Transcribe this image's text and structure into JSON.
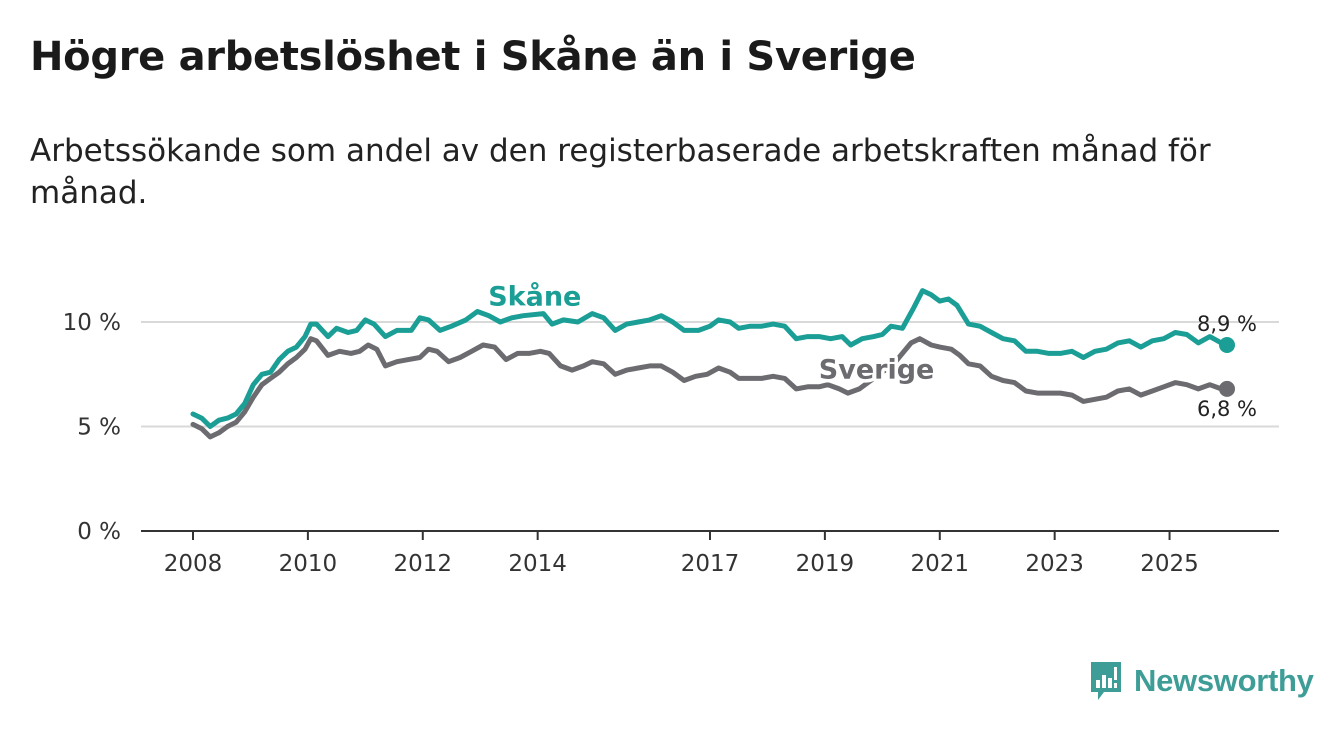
{
  "title": "Högre arbetslöshet i Skåne än i Sverige",
  "subtitle": "Arbetssökande som andel av den registerbaserade arbetskraften månad för månad.",
  "brand": {
    "name": "Newsworthy",
    "icon": "newsworthy-logo-icon",
    "color": "#3e9e97"
  },
  "colors": {
    "skane": "#1a9e95",
    "sverige": "#6b6b70",
    "grid": "#d9d9d9",
    "axis": "#333333"
  },
  "chart_data": {
    "type": "line",
    "title": "Högre arbetslöshet i Skåne än i Sverige",
    "xlabel": "",
    "ylabel": "",
    "xlim": [
      2008,
      2026.9
    ],
    "ylim": [
      0,
      10
    ],
    "xticks": [
      {
        "value": 2008,
        "label": "2008"
      },
      {
        "value": 2010,
        "label": "2010"
      },
      {
        "value": 2012,
        "label": "2012"
      },
      {
        "value": 2014,
        "label": "2014"
      },
      {
        "value": 2017,
        "label": "2017"
      },
      {
        "value": 2019,
        "label": "2019"
      },
      {
        "value": 2021,
        "label": "2021"
      },
      {
        "value": 2023,
        "label": "2023"
      },
      {
        "value": 2025,
        "label": "2025"
      }
    ],
    "yticks": [
      {
        "value": 0,
        "label": "0 %"
      },
      {
        "value": 5,
        "label": "5 %"
      },
      {
        "value": 10,
        "label": "10 %"
      }
    ],
    "series": [
      {
        "name": "Skåne",
        "end_label": "8,9 %",
        "points": [
          [
            2008.0,
            5.6
          ],
          [
            2008.15,
            5.4
          ],
          [
            2008.3,
            5.0
          ],
          [
            2008.45,
            5.3
          ],
          [
            2008.6,
            5.4
          ],
          [
            2008.75,
            5.6
          ],
          [
            2008.9,
            6.1
          ],
          [
            2009.05,
            7.0
          ],
          [
            2009.2,
            7.5
          ],
          [
            2009.35,
            7.6
          ],
          [
            2009.5,
            8.2
          ],
          [
            2009.65,
            8.6
          ],
          [
            2009.8,
            8.8
          ],
          [
            2009.95,
            9.3
          ],
          [
            2010.05,
            9.9
          ],
          [
            2010.15,
            9.9
          ],
          [
            2010.35,
            9.3
          ],
          [
            2010.5,
            9.7
          ],
          [
            2010.7,
            9.5
          ],
          [
            2010.85,
            9.6
          ],
          [
            2011.0,
            10.1
          ],
          [
            2011.15,
            9.9
          ],
          [
            2011.35,
            9.3
          ],
          [
            2011.55,
            9.6
          ],
          [
            2011.8,
            9.6
          ],
          [
            2011.95,
            10.2
          ],
          [
            2012.1,
            10.1
          ],
          [
            2012.3,
            9.6
          ],
          [
            2012.5,
            9.8
          ],
          [
            2012.75,
            10.1
          ],
          [
            2012.95,
            10.5
          ],
          [
            2013.15,
            10.3
          ],
          [
            2013.35,
            10.0
          ],
          [
            2013.55,
            10.2
          ],
          [
            2013.75,
            10.3
          ],
          [
            2014.1,
            10.4
          ],
          [
            2014.25,
            9.9
          ],
          [
            2014.45,
            10.1
          ],
          [
            2014.7,
            10.0
          ],
          [
            2014.95,
            10.4
          ],
          [
            2015.15,
            10.2
          ],
          [
            2015.35,
            9.6
          ],
          [
            2015.55,
            9.9
          ],
          [
            2015.75,
            10.0
          ],
          [
            2015.95,
            10.1
          ],
          [
            2016.15,
            10.3
          ],
          [
            2016.35,
            10.0
          ],
          [
            2016.55,
            9.6
          ],
          [
            2016.8,
            9.6
          ],
          [
            2017.0,
            9.8
          ],
          [
            2017.15,
            10.1
          ],
          [
            2017.35,
            10.0
          ],
          [
            2017.5,
            9.7
          ],
          [
            2017.7,
            9.8
          ],
          [
            2017.9,
            9.8
          ],
          [
            2018.1,
            9.9
          ],
          [
            2018.3,
            9.8
          ],
          [
            2018.5,
            9.2
          ],
          [
            2018.7,
            9.3
          ],
          [
            2018.9,
            9.3
          ],
          [
            2019.1,
            9.2
          ],
          [
            2019.3,
            9.3
          ],
          [
            2019.45,
            8.9
          ],
          [
            2019.65,
            9.2
          ],
          [
            2019.85,
            9.3
          ],
          [
            2020.0,
            9.4
          ],
          [
            2020.15,
            9.8
          ],
          [
            2020.35,
            9.7
          ],
          [
            2020.55,
            10.7
          ],
          [
            2020.7,
            11.5
          ],
          [
            2020.85,
            11.3
          ],
          [
            2021.0,
            11.0
          ],
          [
            2021.15,
            11.1
          ],
          [
            2021.3,
            10.8
          ],
          [
            2021.5,
            9.9
          ],
          [
            2021.7,
            9.8
          ],
          [
            2021.9,
            9.5
          ],
          [
            2022.1,
            9.2
          ],
          [
            2022.3,
            9.1
          ],
          [
            2022.5,
            8.6
          ],
          [
            2022.7,
            8.6
          ],
          [
            2022.9,
            8.5
          ],
          [
            2023.1,
            8.5
          ],
          [
            2023.3,
            8.6
          ],
          [
            2023.5,
            8.3
          ],
          [
            2023.7,
            8.6
          ],
          [
            2023.9,
            8.7
          ],
          [
            2024.1,
            9.0
          ],
          [
            2024.3,
            9.1
          ],
          [
            2024.5,
            8.8
          ],
          [
            2024.7,
            9.1
          ],
          [
            2024.9,
            9.2
          ],
          [
            2025.1,
            9.5
          ],
          [
            2025.3,
            9.4
          ],
          [
            2025.5,
            9.0
          ],
          [
            2025.7,
            9.3
          ],
          [
            2025.9,
            9.0
          ],
          [
            2026.0,
            8.9
          ]
        ]
      },
      {
        "name": "Sverige",
        "end_label": "6,8 %",
        "points": [
          [
            2008.0,
            5.1
          ],
          [
            2008.15,
            4.9
          ],
          [
            2008.3,
            4.5
          ],
          [
            2008.45,
            4.7
          ],
          [
            2008.6,
            5.0
          ],
          [
            2008.75,
            5.2
          ],
          [
            2008.9,
            5.7
          ],
          [
            2009.05,
            6.4
          ],
          [
            2009.2,
            7.0
          ],
          [
            2009.35,
            7.3
          ],
          [
            2009.5,
            7.6
          ],
          [
            2009.65,
            8.0
          ],
          [
            2009.8,
            8.3
          ],
          [
            2009.95,
            8.7
          ],
          [
            2010.05,
            9.2
          ],
          [
            2010.15,
            9.1
          ],
          [
            2010.35,
            8.4
          ],
          [
            2010.55,
            8.6
          ],
          [
            2010.75,
            8.5
          ],
          [
            2010.9,
            8.6
          ],
          [
            2011.05,
            8.9
          ],
          [
            2011.2,
            8.7
          ],
          [
            2011.35,
            7.9
          ],
          [
            2011.55,
            8.1
          ],
          [
            2011.75,
            8.2
          ],
          [
            2011.95,
            8.3
          ],
          [
            2012.1,
            8.7
          ],
          [
            2012.25,
            8.6
          ],
          [
            2012.45,
            8.1
          ],
          [
            2012.65,
            8.3
          ],
          [
            2012.85,
            8.6
          ],
          [
            2013.05,
            8.9
          ],
          [
            2013.25,
            8.8
          ],
          [
            2013.45,
            8.2
          ],
          [
            2013.65,
            8.5
          ],
          [
            2013.85,
            8.5
          ],
          [
            2014.05,
            8.6
          ],
          [
            2014.2,
            8.5
          ],
          [
            2014.4,
            7.9
          ],
          [
            2014.6,
            7.7
          ],
          [
            2014.8,
            7.9
          ],
          [
            2014.95,
            8.1
          ],
          [
            2015.15,
            8.0
          ],
          [
            2015.35,
            7.5
          ],
          [
            2015.55,
            7.7
          ],
          [
            2015.75,
            7.8
          ],
          [
            2015.95,
            7.9
          ],
          [
            2016.15,
            7.9
          ],
          [
            2016.35,
            7.6
          ],
          [
            2016.55,
            7.2
          ],
          [
            2016.75,
            7.4
          ],
          [
            2016.95,
            7.5
          ],
          [
            2017.15,
            7.8
          ],
          [
            2017.35,
            7.6
          ],
          [
            2017.5,
            7.3
          ],
          [
            2017.7,
            7.3
          ],
          [
            2017.9,
            7.3
          ],
          [
            2018.1,
            7.4
          ],
          [
            2018.3,
            7.3
          ],
          [
            2018.5,
            6.8
          ],
          [
            2018.7,
            6.9
          ],
          [
            2018.9,
            6.9
          ],
          [
            2019.05,
            7.0
          ],
          [
            2019.25,
            6.8
          ],
          [
            2019.4,
            6.6
          ],
          [
            2019.6,
            6.8
          ],
          [
            2019.8,
            7.2
          ],
          [
            2020.0,
            7.6
          ],
          [
            2020.2,
            8.0
          ],
          [
            2020.35,
            8.5
          ],
          [
            2020.5,
            9.0
          ],
          [
            2020.65,
            9.2
          ],
          [
            2020.85,
            8.9
          ],
          [
            2021.0,
            8.8
          ],
          [
            2021.2,
            8.7
          ],
          [
            2021.35,
            8.4
          ],
          [
            2021.5,
            8.0
          ],
          [
            2021.7,
            7.9
          ],
          [
            2021.9,
            7.4
          ],
          [
            2022.1,
            7.2
          ],
          [
            2022.3,
            7.1
          ],
          [
            2022.5,
            6.7
          ],
          [
            2022.7,
            6.6
          ],
          [
            2022.9,
            6.6
          ],
          [
            2023.1,
            6.6
          ],
          [
            2023.3,
            6.5
          ],
          [
            2023.5,
            6.2
          ],
          [
            2023.7,
            6.3
          ],
          [
            2023.9,
            6.4
          ],
          [
            2024.1,
            6.7
          ],
          [
            2024.3,
            6.8
          ],
          [
            2024.5,
            6.5
          ],
          [
            2024.7,
            6.7
          ],
          [
            2024.9,
            6.9
          ],
          [
            2025.1,
            7.1
          ],
          [
            2025.3,
            7.0
          ],
          [
            2025.5,
            6.8
          ],
          [
            2025.7,
            7.0
          ],
          [
            2025.9,
            6.8
          ],
          [
            2026.0,
            6.8
          ]
        ]
      }
    ],
    "annotations": [
      {
        "text": "Skåne",
        "x": 2013.95,
        "y": 10.8,
        "series": "Skåne"
      },
      {
        "text": "Sverige",
        "x": 2019.9,
        "y": 7.3,
        "series": "Sverige"
      }
    ]
  }
}
